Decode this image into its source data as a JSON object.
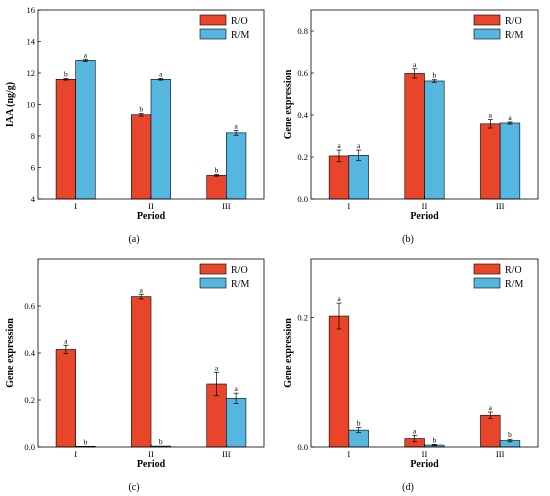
{
  "colors": {
    "ro": "#e8452a",
    "rm": "#55b7e0"
  },
  "chart_data": [
    {
      "type": "bar",
      "panel_label": "(a)",
      "categories": [
        "I",
        "II",
        "III"
      ],
      "series": [
        {
          "name": "R/O",
          "values": [
            11.6,
            9.35,
            5.5
          ],
          "errors": [
            0.05,
            0.08,
            0.05
          ],
          "letters": [
            "b",
            "b",
            "b"
          ]
        },
        {
          "name": "R/M",
          "values": [
            12.8,
            11.6,
            8.2
          ],
          "errors": [
            0.07,
            0.05,
            0.15
          ],
          "letters": [
            "a",
            "a",
            "a"
          ]
        }
      ],
      "xlabel": "Period",
      "ylabel": "IAA (ng/g)",
      "ylim": [
        4,
        16
      ],
      "yticks": [
        "4",
        "6",
        "8",
        "10",
        "12",
        "14",
        "16"
      ],
      "grid": false,
      "legend": "top-right"
    },
    {
      "type": "bar",
      "panel_label": "(b)",
      "categories": [
        "I",
        "II",
        "III"
      ],
      "series": [
        {
          "name": "R/O",
          "values": [
            0.205,
            0.598,
            0.358
          ],
          "errors": [
            0.028,
            0.022,
            0.02
          ],
          "letters": [
            "a",
            "a",
            "a"
          ]
        },
        {
          "name": "R/M",
          "values": [
            0.208,
            0.562,
            0.362
          ],
          "errors": [
            0.025,
            0.006,
            0.005
          ],
          "letters": [
            "a",
            "b",
            "a"
          ]
        }
      ],
      "xlabel": "Period",
      "ylabel": "Gene expression",
      "ylim": [
        0,
        0.9
      ],
      "yticks": [
        "0.0",
        "0.2",
        "0.4",
        "0.6",
        "0.8"
      ],
      "grid": false,
      "legend": "top-right"
    },
    {
      "type": "bar",
      "panel_label": "(c)",
      "categories": [
        "I",
        "II",
        "III"
      ],
      "series": [
        {
          "name": "R/O",
          "values": [
            0.415,
            0.64,
            0.268
          ],
          "errors": [
            0.018,
            0.01,
            0.05
          ],
          "letters": [
            "a",
            "a",
            "a"
          ]
        },
        {
          "name": "R/M",
          "values": [
            0.003,
            0.004,
            0.207
          ],
          "errors": [
            0,
            0,
            0.022
          ],
          "letters": [
            "b",
            "b",
            "a"
          ]
        }
      ],
      "xlabel": "Period",
      "ylabel": "Gene expression",
      "ylim": [
        0,
        0.8
      ],
      "yticks": [
        "0.0",
        "0.2",
        "0.4",
        "0.6"
      ],
      "grid": false,
      "legend": "top-right"
    },
    {
      "type": "bar",
      "panel_label": "(d)",
      "categories": [
        "I",
        "II",
        "III"
      ],
      "series": [
        {
          "name": "R/O",
          "values": [
            0.202,
            0.013,
            0.049
          ],
          "errors": [
            0.02,
            0.005,
            0.005
          ],
          "letters": [
            "a",
            "a",
            "a"
          ]
        },
        {
          "name": "R/M",
          "values": [
            0.026,
            0.003,
            0.01
          ],
          "errors": [
            0.004,
            0.001,
            0.002
          ],
          "letters": [
            "b",
            "b",
            "b"
          ]
        }
      ],
      "xlabel": "Period",
      "ylabel": "Gene expression",
      "ylim": [
        0,
        0.29
      ],
      "yticks": [
        "0.0",
        "0.2"
      ],
      "grid": false,
      "legend": "top-right"
    }
  ]
}
